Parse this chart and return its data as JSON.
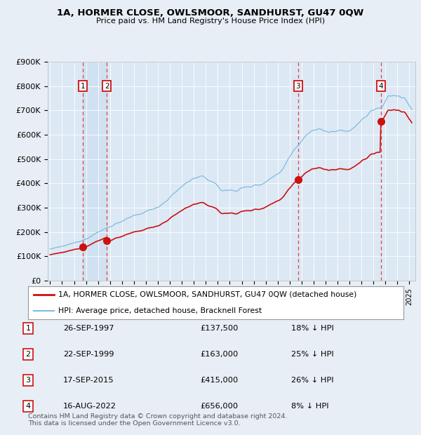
{
  "title1": "1A, HORMER CLOSE, OWLSMOOR, SANDHURST, GU47 0QW",
  "title2": "Price paid vs. HM Land Registry's House Price Index (HPI)",
  "background_color": "#e8eef5",
  "plot_bg": "#dce8f4",
  "legend_line1": "1A, HORMER CLOSE, OWLSMOOR, SANDHURST, GU47 0QW (detached house)",
  "legend_line2": "HPI: Average price, detached house, Bracknell Forest",
  "footer": "Contains HM Land Registry data © Crown copyright and database right 2024.\nThis data is licensed under the Open Government Licence v3.0.",
  "sales": [
    {
      "num": 1,
      "date": "26-SEP-1997",
      "price": 137500,
      "pct": "18% ↓ HPI",
      "year": 1997.73
    },
    {
      "num": 2,
      "date": "22-SEP-1999",
      "price": 163000,
      "pct": "25% ↓ HPI",
      "year": 1999.73
    },
    {
      "num": 3,
      "date": "17-SEP-2015",
      "price": 415000,
      "pct": "26% ↓ HPI",
      "year": 2015.71
    },
    {
      "num": 4,
      "date": "16-AUG-2022",
      "price": 656000,
      "pct": "8% ↓ HPI",
      "year": 2022.62
    }
  ],
  "hpi_color": "#7bbde0",
  "price_color": "#cc1111",
  "dashed_color": "#dd4444",
  "xmin": 1994.8,
  "xmax": 2025.5,
  "ymin": 0,
  "ymax": 900000,
  "shade_color": "#c8ddf0"
}
